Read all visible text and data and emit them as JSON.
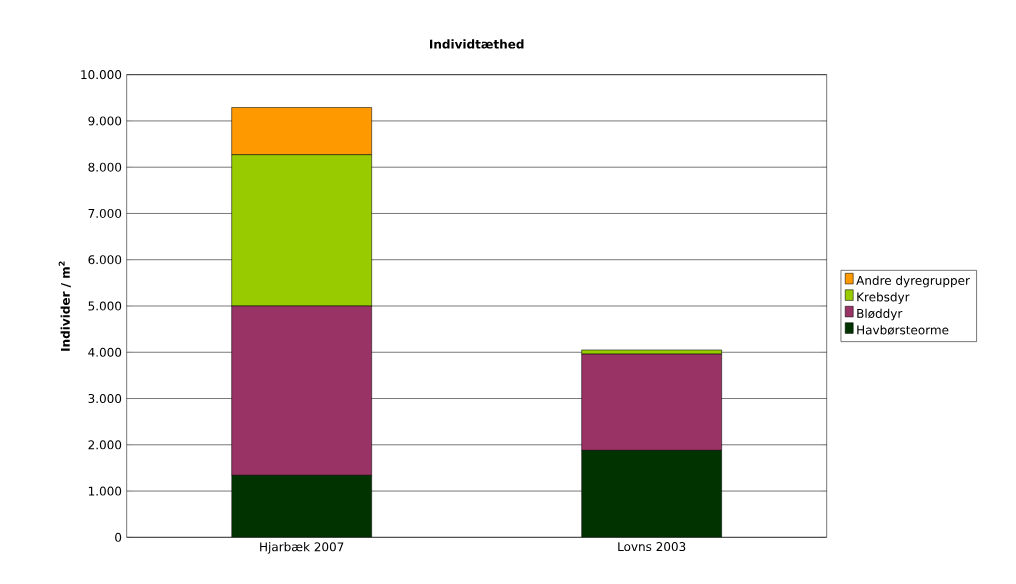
{
  "chart_data": {
    "type": "bar",
    "title": "Individtæthed",
    "ylabel": "Individer / m$^{2}$",
    "stacked": true,
    "categories": [
      "Hjarbæk 2007",
      "Lovns 2003"
    ],
    "series": [
      {
        "name": "Havbørsteorme",
        "color": "#003300",
        "values": [
          1340,
          1880
        ]
      },
      {
        "name": "Bløddyr",
        "color": "#993366",
        "values": [
          3660,
          2080
        ]
      },
      {
        "name": "Krebsdyr",
        "color": "#99cc00",
        "values": [
          3270,
          90
        ]
      },
      {
        "name": "Andre dyregrupper",
        "color": "#ff9900",
        "values": [
          1020,
          0
        ]
      }
    ],
    "ylim": [
      0,
      10000
    ],
    "yticks": [
      0,
      {
        "value": 1000,
        "label": "1.000"
      },
      {
        "value": 2000,
        "label": "2.000"
      },
      {
        "value": 3000,
        "label": "3.000"
      },
      {
        "value": 4000,
        "label": "4.000"
      },
      {
        "value": 5000,
        "label": "5.000"
      },
      {
        "value": 6000,
        "label": "6.000"
      },
      {
        "value": 7000,
        "label": "7.000"
      },
      {
        "value": 8000,
        "label": "8.000"
      },
      {
        "value": 9000,
        "label": "9.000"
      },
      {
        "value": 10000,
        "label": "10.000"
      }
    ],
    "grid": "y",
    "legend": "right"
  }
}
